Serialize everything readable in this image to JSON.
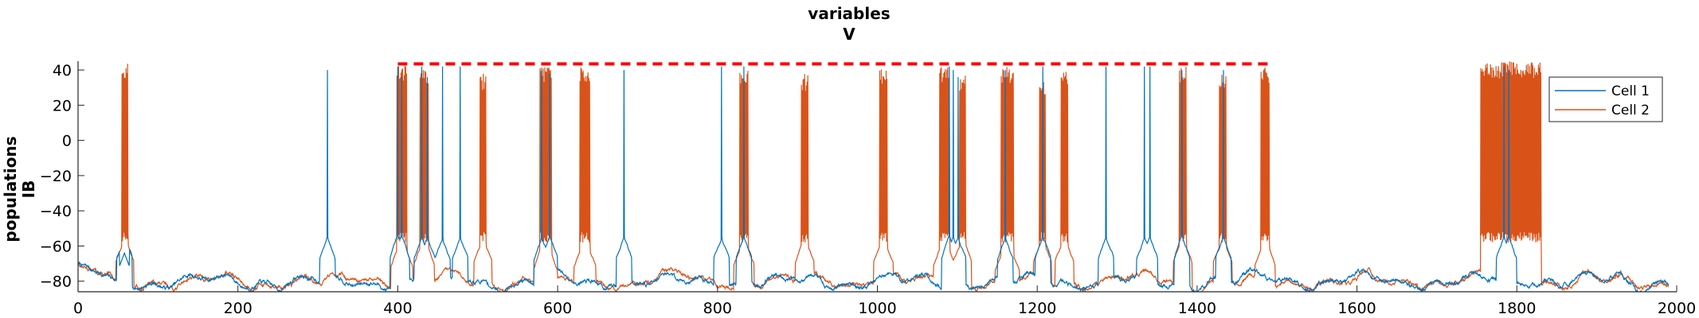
{
  "chart_data": {
    "type": "line",
    "title": "variables",
    "subtitle": "V",
    "ylabel_line1": "populations",
    "ylabel_line2": "IB",
    "xlabel": "",
    "xlim": [
      0,
      2000
    ],
    "ylim": [
      -86,
      45
    ],
    "xticks": [
      0,
      200,
      400,
      600,
      800,
      1000,
      1200,
      1400,
      1600,
      1800,
      2000
    ],
    "yticks": [
      -80,
      -60,
      -40,
      -20,
      0,
      20,
      40
    ],
    "grid": false,
    "legend_position": "top-right",
    "colors": {
      "cell1": "#0072BD",
      "cell2": "#D95319",
      "stim": "#FF0000"
    },
    "reference_line": {
      "y": 43.5,
      "x_start": 400,
      "x_end": 1490,
      "style": "dashed",
      "color": "#FF0000"
    },
    "series": [
      {
        "name": "Cell 1",
        "color": "#0072BD",
        "baseline": -80,
        "spikes": [
          {
            "t": 58,
            "peak": -64,
            "width": 6
          },
          {
            "t": 312,
            "peak": 40,
            "width": 1
          },
          {
            "t": 400,
            "peak": 42,
            "width": 2
          },
          {
            "t": 405,
            "peak": 36,
            "width": 2
          },
          {
            "t": 430,
            "peak": 42,
            "width": 2
          },
          {
            "t": 437,
            "peak": 36,
            "width": 2
          },
          {
            "t": 456,
            "peak": 42,
            "width": 1
          },
          {
            "t": 478,
            "peak": 42,
            "width": 1
          },
          {
            "t": 580,
            "peak": 40,
            "width": 2
          },
          {
            "t": 590,
            "peak": 38,
            "width": 2
          },
          {
            "t": 683,
            "peak": 40,
            "width": 1
          },
          {
            "t": 805,
            "peak": 42,
            "width": 1
          },
          {
            "t": 833,
            "peak": 42,
            "width": 2
          },
          {
            "t": 1090,
            "peak": 42,
            "width": 2
          },
          {
            "t": 1095,
            "peak": 40,
            "width": 2
          },
          {
            "t": 1101,
            "peak": 36,
            "width": 2
          },
          {
            "t": 1160,
            "peak": 40,
            "width": 2
          },
          {
            "t": 1207,
            "peak": 42,
            "width": 1
          },
          {
            "t": 1286,
            "peak": 42,
            "width": 1
          },
          {
            "t": 1334,
            "peak": 42,
            "width": 1
          },
          {
            "t": 1341,
            "peak": 42,
            "width": 1
          },
          {
            "t": 1381,
            "peak": 40,
            "width": 2
          },
          {
            "t": 1433,
            "peak": 40,
            "width": 1
          },
          {
            "t": 1784,
            "peak": 42,
            "width": 2
          },
          {
            "t": 1790,
            "peak": 40,
            "width": 2
          }
        ]
      },
      {
        "name": "Cell 2",
        "color": "#D95319",
        "baseline": -80,
        "bursts": [
          {
            "t_start": 55,
            "t_end": 62,
            "peak": 44
          },
          {
            "t_start": 399,
            "t_end": 411,
            "peak": 43
          },
          {
            "t_start": 428,
            "t_end": 438,
            "peak": 40
          },
          {
            "t_start": 503,
            "t_end": 510,
            "peak": 38
          },
          {
            "t_start": 578,
            "t_end": 592,
            "peak": 43
          },
          {
            "t_start": 628,
            "t_end": 640,
            "peak": 42
          },
          {
            "t_start": 828,
            "t_end": 838,
            "peak": 40
          },
          {
            "t_start": 905,
            "t_end": 913,
            "peak": 38
          },
          {
            "t_start": 1003,
            "t_end": 1012,
            "peak": 42
          },
          {
            "t_start": 1078,
            "t_end": 1090,
            "peak": 42
          },
          {
            "t_start": 1103,
            "t_end": 1110,
            "peak": 38
          },
          {
            "t_start": 1155,
            "t_end": 1170,
            "peak": 42
          },
          {
            "t_start": 1203,
            "t_end": 1210,
            "peak": 36
          },
          {
            "t_start": 1230,
            "t_end": 1238,
            "peak": 42
          },
          {
            "t_start": 1378,
            "t_end": 1386,
            "peak": 42
          },
          {
            "t_start": 1428,
            "t_end": 1436,
            "peak": 40
          },
          {
            "t_start": 1480,
            "t_end": 1490,
            "peak": 42
          },
          {
            "t_start": 1755,
            "t_end": 1830,
            "peak": 45
          }
        ]
      }
    ]
  }
}
